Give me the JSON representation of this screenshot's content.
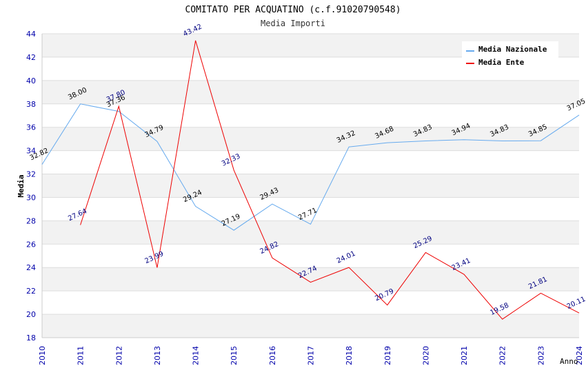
{
  "chart_data": {
    "type": "line",
    "title": "COMITATO PER ACQUATINO (c.f.91020790548)",
    "subtitle": "Media Importi",
    "xlabel": "Anno",
    "ylabel": "Media",
    "ylim": [
      18,
      44
    ],
    "yticks": [
      "18",
      "20",
      "22",
      "24",
      "26",
      "28",
      "30",
      "32",
      "34",
      "36",
      "38",
      "40",
      "42",
      "44"
    ],
    "x": [
      "2010",
      "2011",
      "2012",
      "2013",
      "2014",
      "2015",
      "2016",
      "2017",
      "2018",
      "2019",
      "2020",
      "2021",
      "2022",
      "2023",
      "2024"
    ],
    "grid": true,
    "legend_position": "top-right",
    "series": [
      {
        "name": "Media Nazionale",
        "color": "#66aaee",
        "values": [
          32.82,
          38.0,
          37.36,
          34.79,
          29.24,
          27.19,
          29.43,
          27.71,
          34.32,
          34.68,
          34.83,
          34.94,
          34.83,
          34.85,
          37.05
        ],
        "labels": [
          "32.82",
          "38.00",
          "37.36",
          "34.79",
          "29.24",
          "27.19",
          "29.43",
          "27.71",
          "34.32",
          "34.68",
          "34.83",
          "34.94",
          "34.83",
          "34.85",
          "37.05"
        ]
      },
      {
        "name": "Media Ente",
        "color": "#ee0000",
        "values": [
          null,
          27.64,
          37.8,
          23.99,
          43.42,
          32.33,
          24.82,
          22.74,
          24.01,
          20.79,
          25.29,
          23.41,
          19.58,
          21.81,
          20.11
        ],
        "labels": [
          "",
          "27.64",
          "37.80",
          "23.99",
          "43.42",
          "32.33",
          "24.82",
          "22.74",
          "24.01",
          "20.79",
          "25.29",
          "23.41",
          "19.58",
          "21.81",
          "20.11"
        ]
      }
    ]
  }
}
